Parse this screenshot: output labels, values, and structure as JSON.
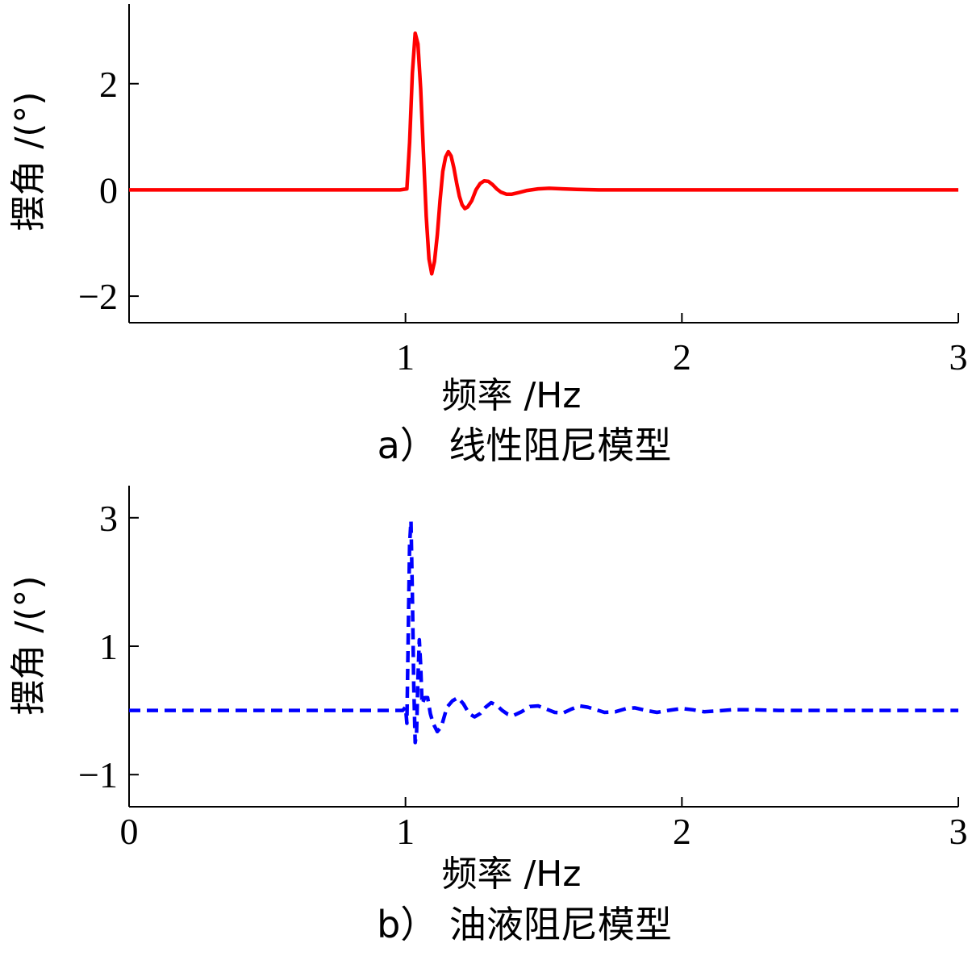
{
  "chart_data": [
    {
      "type": "line",
      "caption": "a）  线性阻尼模型",
      "xlabel": "频率 /Hz",
      "ylabel": "摆角 /(°)",
      "xlim": [
        0,
        3
      ],
      "ylim": [
        -2.5,
        3.5
      ],
      "xticks": [
        1,
        2,
        3
      ],
      "yticks": [
        -2,
        0,
        2
      ],
      "ytick_labels": [
        "−2",
        "0",
        "2"
      ],
      "grid": false,
      "series": [
        {
          "line_style": "solid",
          "color": "#ff0000",
          "points": [
            [
              0,
              0
            ],
            [
              0.5,
              0
            ],
            [
              0.98,
              0
            ],
            [
              1.005,
              0.02
            ],
            [
              1.015,
              0.9
            ],
            [
              1.025,
              2.2
            ],
            [
              1.035,
              2.95
            ],
            [
              1.045,
              2.75
            ],
            [
              1.055,
              1.9
            ],
            [
              1.065,
              0.7
            ],
            [
              1.075,
              -0.5
            ],
            [
              1.085,
              -1.3
            ],
            [
              1.095,
              -1.58
            ],
            [
              1.105,
              -1.35
            ],
            [
              1.115,
              -0.85
            ],
            [
              1.125,
              -0.2
            ],
            [
              1.135,
              0.35
            ],
            [
              1.145,
              0.62
            ],
            [
              1.155,
              0.72
            ],
            [
              1.165,
              0.64
            ],
            [
              1.175,
              0.42
            ],
            [
              1.185,
              0.13
            ],
            [
              1.195,
              -0.12
            ],
            [
              1.205,
              -0.28
            ],
            [
              1.215,
              -0.35
            ],
            [
              1.225,
              -0.32
            ],
            [
              1.24,
              -0.2
            ],
            [
              1.255,
              0
            ],
            [
              1.27,
              0.12
            ],
            [
              1.285,
              0.17
            ],
            [
              1.3,
              0.16
            ],
            [
              1.315,
              0.1
            ],
            [
              1.33,
              0.02
            ],
            [
              1.345,
              -0.04
            ],
            [
              1.365,
              -0.08
            ],
            [
              1.385,
              -0.08
            ],
            [
              1.41,
              -0.05
            ],
            [
              1.44,
              -0.01
            ],
            [
              1.48,
              0.02
            ],
            [
              1.52,
              0.03
            ],
            [
              1.57,
              0.02
            ],
            [
              1.62,
              0.01
            ],
            [
              1.7,
              0
            ],
            [
              2,
              0
            ],
            [
              3,
              0
            ]
          ]
        }
      ]
    },
    {
      "type": "line",
      "caption": "b）  油液阻尼模型",
      "xlabel": "频率 /Hz",
      "ylabel": "摆角 /(°)",
      "xlim": [
        0,
        3
      ],
      "ylim": [
        -1.5,
        3.5
      ],
      "xticks": [
        0,
        1,
        2,
        3
      ],
      "yticks": [
        -1,
        1,
        3
      ],
      "ytick_labels": [
        "−1",
        "1",
        "3"
      ],
      "grid": false,
      "series": [
        {
          "line_style": "dashed",
          "color": "#0000ff",
          "points": [
            [
              0,
              0
            ],
            [
              0.5,
              0
            ],
            [
              0.99,
              0
            ],
            [
              1.0,
              0.05
            ],
            [
              1.005,
              -0.2
            ],
            [
              1.01,
              1.2
            ],
            [
              1.015,
              2.6
            ],
            [
              1.02,
              2.95
            ],
            [
              1.025,
              1.8
            ],
            [
              1.03,
              0.4
            ],
            [
              1.035,
              -0.5
            ],
            [
              1.04,
              -0.35
            ],
            [
              1.045,
              0.5
            ],
            [
              1.05,
              1.1
            ],
            [
              1.055,
              0.7
            ],
            [
              1.06,
              0.1
            ],
            [
              1.07,
              0.2
            ],
            [
              1.08,
              0.2
            ],
            [
              1.09,
              -0.05
            ],
            [
              1.1,
              -0.2
            ],
            [
              1.115,
              -0.33
            ],
            [
              1.13,
              -0.25
            ],
            [
              1.15,
              0.05
            ],
            [
              1.17,
              0.15
            ],
            [
              1.19,
              0.2
            ],
            [
              1.21,
              0.1
            ],
            [
              1.23,
              -0.05
            ],
            [
              1.25,
              -0.1
            ],
            [
              1.27,
              -0.05
            ],
            [
              1.29,
              0.05
            ],
            [
              1.31,
              0.12
            ],
            [
              1.33,
              0.08
            ],
            [
              1.35,
              0
            ],
            [
              1.37,
              -0.06
            ],
            [
              1.39,
              -0.08
            ],
            [
              1.42,
              -0.02
            ],
            [
              1.45,
              0.06
            ],
            [
              1.48,
              0.07
            ],
            [
              1.51,
              0.02
            ],
            [
              1.54,
              -0.03
            ],
            [
              1.57,
              -0.04
            ],
            [
              1.6,
              0.02
            ],
            [
              1.63,
              0.07
            ],
            [
              1.66,
              0.05
            ],
            [
              1.69,
              0.01
            ],
            [
              1.72,
              -0.03
            ],
            [
              1.76,
              -0.02
            ],
            [
              1.8,
              0.03
            ],
            [
              1.83,
              0.04
            ],
            [
              1.87,
              0.0
            ],
            [
              1.91,
              -0.03
            ],
            [
              1.95,
              0.0
            ],
            [
              2.0,
              0.03
            ],
            [
              2.04,
              0.01
            ],
            [
              2.08,
              -0.02
            ],
            [
              2.12,
              -0.01
            ],
            [
              2.18,
              0.01
            ],
            [
              2.25,
              0.01
            ],
            [
              2.35,
              0.0
            ],
            [
              2.5,
              0.0
            ],
            [
              2.7,
              0.0
            ],
            [
              3,
              0
            ]
          ]
        }
      ]
    }
  ]
}
